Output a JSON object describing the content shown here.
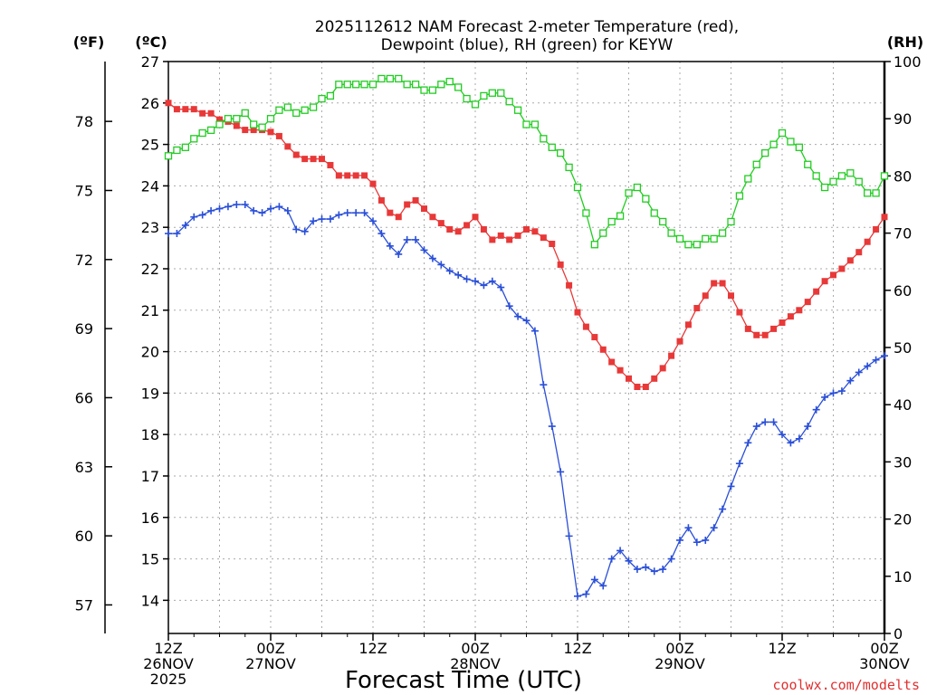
{
  "chart_data": {
    "type": "line",
    "title_line1": "2025112612 NAM Forecast 2-meter Temperature (red),",
    "title_line2": "Dewpoint (blue), RH (green) for KEYW",
    "xlabel": "Forecast Time (UTC)",
    "credit": "coolwx.com/modelts",
    "left_unit_f": "(ºF)",
    "left_unit_c": "(ºC)",
    "right_unit": "(RH)",
    "x_range_hours": [
      0,
      84
    ],
    "x_ticks": [
      {
        "hour": 0,
        "lines": [
          "12Z",
          "26NOV",
          "2025"
        ]
      },
      {
        "hour": 12,
        "lines": [
          "00Z",
          "27NOV"
        ]
      },
      {
        "hour": 24,
        "lines": [
          "12Z"
        ]
      },
      {
        "hour": 36,
        "lines": [
          "00Z",
          "28NOV"
        ]
      },
      {
        "hour": 48,
        "lines": [
          "12Z"
        ]
      },
      {
        "hour": 60,
        "lines": [
          "00Z",
          "29NOV"
        ]
      },
      {
        "hour": 72,
        "lines": [
          "12Z"
        ]
      },
      {
        "hour": 84,
        "lines": [
          "00Z",
          "30NOV"
        ]
      }
    ],
    "y_celsius_range": [
      13.2,
      27
    ],
    "y_celsius_ticks": [
      "14",
      "15",
      "16",
      "17",
      "18",
      "19",
      "20",
      "21",
      "22",
      "23",
      "24",
      "25",
      "26",
      "27"
    ],
    "y_fahrenheit_ticks": [
      "57",
      "60",
      "63",
      "66",
      "69",
      "72",
      "75",
      "78"
    ],
    "y_rh_range": [
      0,
      100
    ],
    "y_rh_ticks": [
      "0",
      "10",
      "20",
      "30",
      "40",
      "50",
      "60",
      "70",
      "80",
      "90",
      "100"
    ],
    "hours": [
      0,
      1,
      2,
      3,
      4,
      5,
      6,
      7,
      8,
      9,
      10,
      11,
      12,
      13,
      14,
      15,
      16,
      17,
      18,
      19,
      20,
      21,
      22,
      23,
      24,
      25,
      26,
      27,
      28,
      29,
      30,
      31,
      32,
      33,
      34,
      35,
      36,
      37,
      38,
      39,
      40,
      41,
      42,
      43,
      44,
      45,
      46,
      47,
      48,
      49,
      50,
      51,
      52,
      53,
      54,
      55,
      56,
      57,
      58,
      59,
      60,
      61,
      62,
      63,
      64,
      65,
      66,
      67,
      68,
      69,
      70,
      71,
      72,
      73,
      74,
      75,
      76,
      77,
      78,
      79,
      80,
      81,
      82,
      83,
      84
    ],
    "series": [
      {
        "name": "Temperature",
        "unit": "C",
        "color": "#e83838",
        "marker": "filled-square",
        "values": [
          26.0,
          25.85,
          25.85,
          25.85,
          25.75,
          25.75,
          25.6,
          25.55,
          25.45,
          25.35,
          25.35,
          25.35,
          25.3,
          25.2,
          24.95,
          24.75,
          24.65,
          24.65,
          24.65,
          24.5,
          24.25,
          24.25,
          24.25,
          24.25,
          24.05,
          23.65,
          23.35,
          23.25,
          23.55,
          23.65,
          23.45,
          23.25,
          23.1,
          22.95,
          22.9,
          23.05,
          23.25,
          22.95,
          22.7,
          22.8,
          22.7,
          22.8,
          22.95,
          22.9,
          22.75,
          22.6,
          22.1,
          21.6,
          20.95,
          20.6,
          20.35,
          20.05,
          19.75,
          19.55,
          19.35,
          19.15,
          19.15,
          19.35,
          19.6,
          19.9,
          20.25,
          20.65,
          21.05,
          21.35,
          21.65,
          21.65,
          21.35,
          20.95,
          20.55,
          20.4,
          20.4,
          20.55,
          20.7,
          20.85,
          21.0,
          21.2,
          21.45,
          21.7,
          21.85,
          22.0,
          22.2,
          22.4,
          22.65,
          22.95,
          23.25
        ]
      },
      {
        "name": "Dewpoint",
        "unit": "C",
        "color": "#2a4fd8",
        "marker": "plus",
        "values": [
          22.85,
          22.85,
          23.05,
          23.25,
          23.3,
          23.4,
          23.45,
          23.5,
          23.55,
          23.55,
          23.4,
          23.35,
          23.45,
          23.5,
          23.4,
          22.95,
          22.9,
          23.15,
          23.2,
          23.2,
          23.3,
          23.35,
          23.35,
          23.35,
          23.15,
          22.85,
          22.55,
          22.35,
          22.7,
          22.7,
          22.45,
          22.25,
          22.1,
          21.95,
          21.85,
          21.75,
          21.7,
          21.6,
          21.7,
          21.55,
          21.1,
          20.85,
          20.75,
          20.5,
          19.2,
          18.2,
          17.1,
          15.55,
          14.1,
          14.15,
          14.5,
          14.35,
          15.0,
          15.2,
          14.95,
          14.75,
          14.8,
          14.7,
          14.75,
          15.0,
          15.45,
          15.75,
          15.4,
          15.45,
          15.75,
          16.2,
          16.75,
          17.3,
          17.8,
          18.2,
          18.3,
          18.3,
          18.0,
          17.8,
          17.9,
          18.2,
          18.6,
          18.9,
          19.0,
          19.05,
          19.3,
          19.5,
          19.65,
          19.8,
          19.9
        ]
      },
      {
        "name": "Relative Humidity",
        "unit": "%",
        "color": "#22cc22",
        "marker": "open-square",
        "values": [
          83.5,
          84.5,
          85,
          86.5,
          87.5,
          88,
          89,
          90,
          90,
          91,
          89,
          88.5,
          90,
          91.5,
          92,
          91,
          91.5,
          92,
          93.5,
          94,
          96,
          96,
          96,
          96,
          96,
          97,
          97,
          97,
          96,
          96,
          95,
          95,
          96,
          96.5,
          95.5,
          93.5,
          92.5,
          94,
          94.5,
          94.5,
          93,
          91.5,
          89,
          89,
          86.5,
          85,
          84,
          81.5,
          78,
          73.5,
          68,
          70,
          72,
          73,
          77,
          78,
          76,
          73.5,
          72,
          70,
          69,
          68,
          68,
          69,
          69,
          70,
          72,
          76.5,
          79.5,
          82,
          84,
          85.5,
          87.5,
          86,
          85,
          82,
          80,
          78,
          79,
          80,
          80.5,
          79,
          77,
          77,
          80
        ]
      }
    ]
  }
}
